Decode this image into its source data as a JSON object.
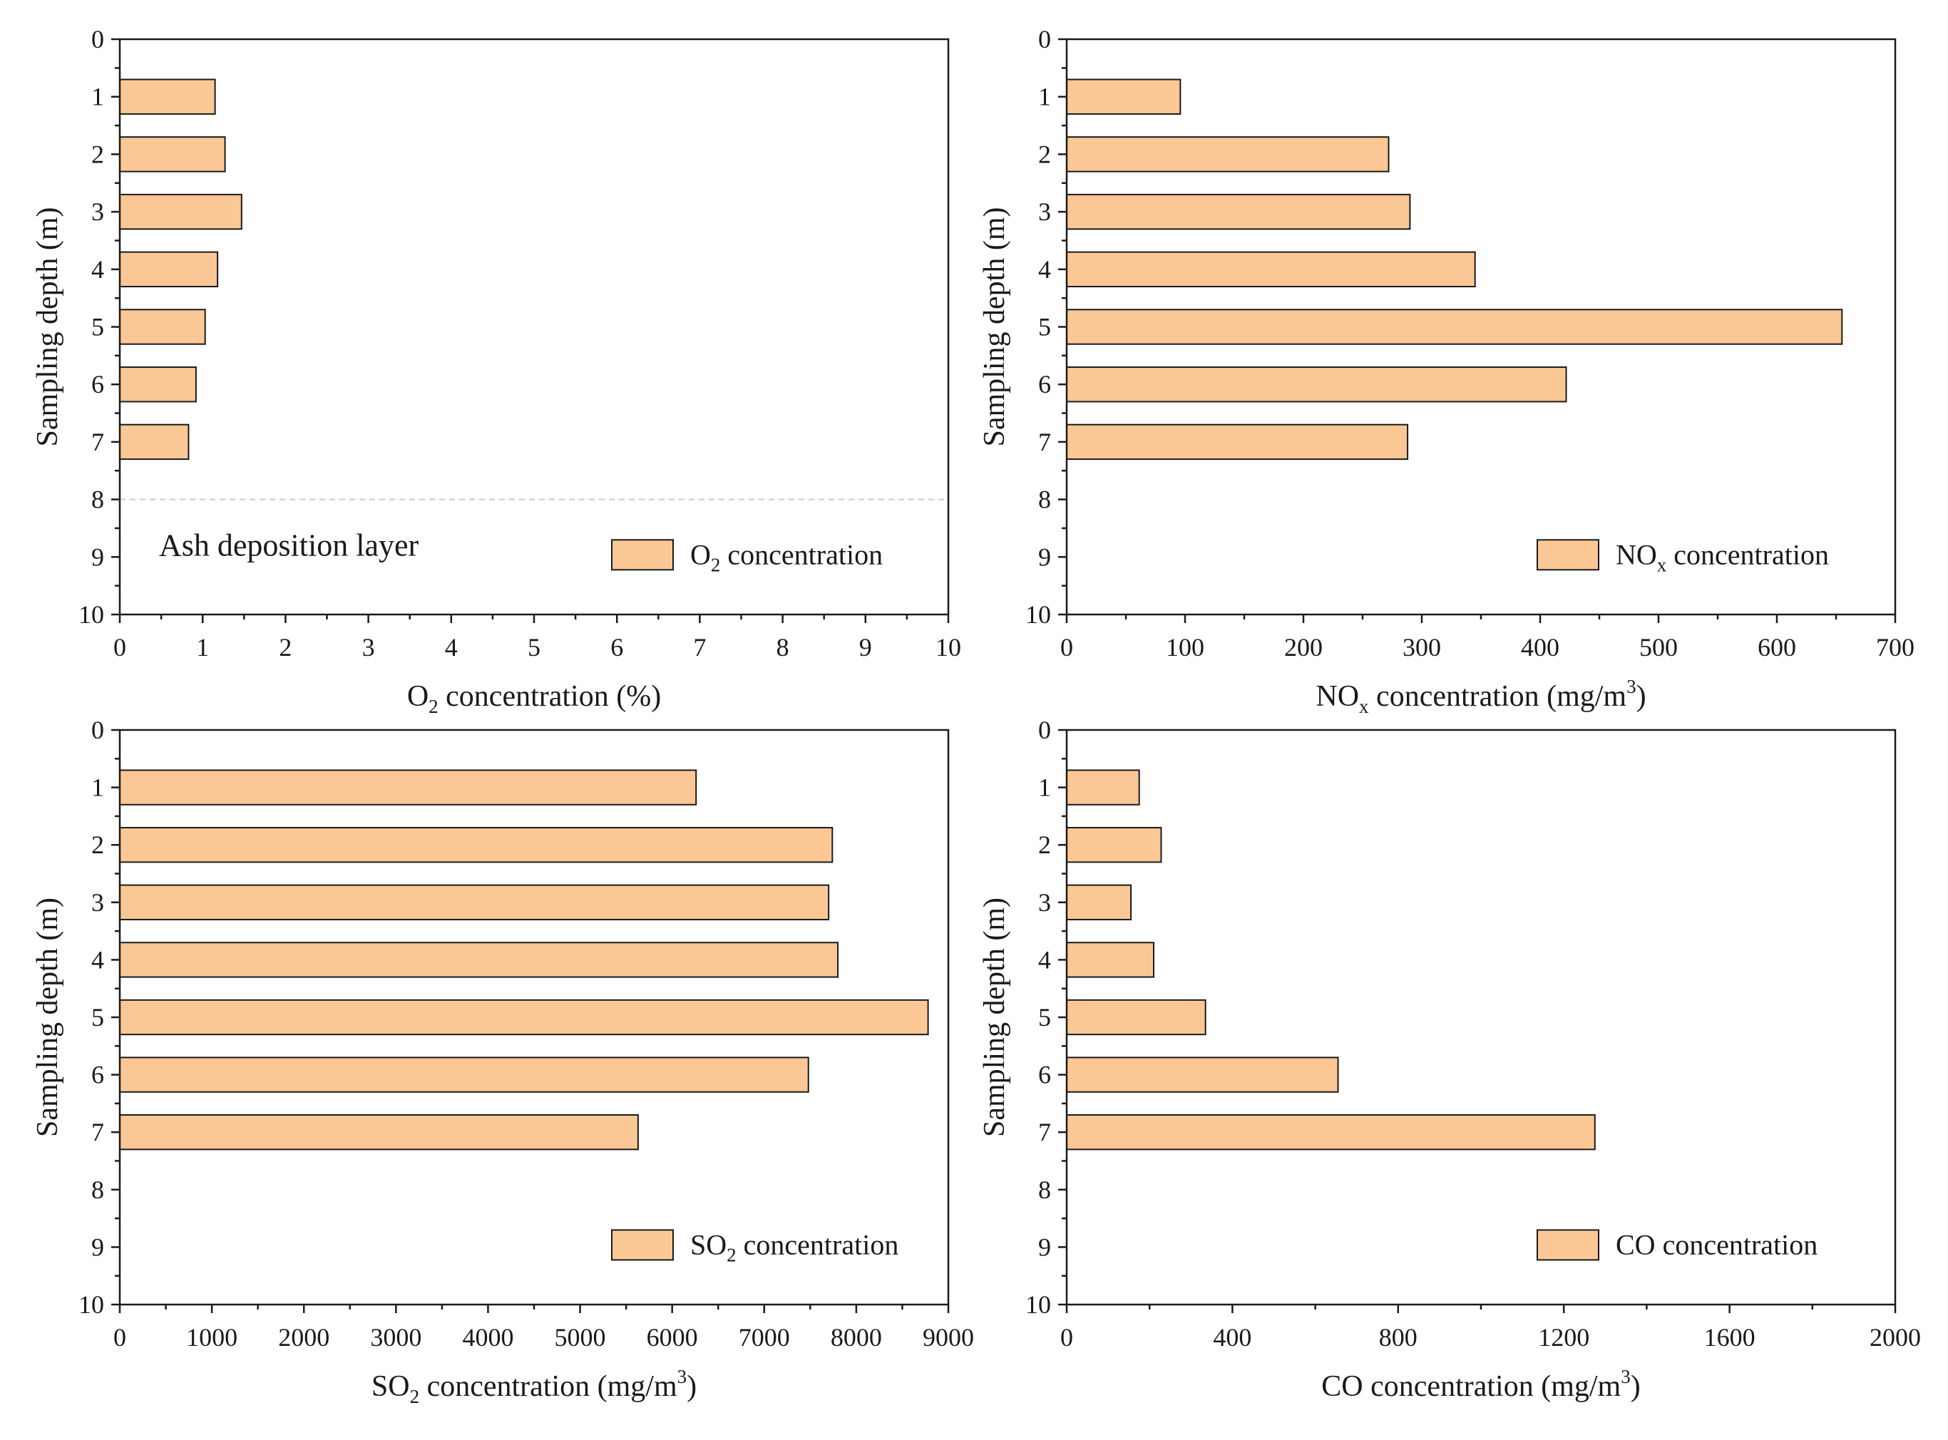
{
  "colors": {
    "bar_fill": "#fbc895",
    "bar_edge": "#1a1a1a",
    "axis": "#1a1a1a"
  },
  "chart_data": [
    {
      "type": "bar",
      "orientation": "horizontal",
      "categories": [
        1,
        2,
        3,
        4,
        5,
        6,
        7
      ],
      "series": [
        {
          "name": "O2 concentration",
          "values": [
            1.15,
            1.27,
            1.47,
            1.18,
            1.03,
            0.92,
            0.83
          ]
        }
      ],
      "xlabel": {
        "main": "O",
        "sub": "2",
        "rest": " concentration (%)"
      },
      "ylabel": "Sampling depth (m)",
      "legend": {
        "main": "O",
        "sub": "2",
        "rest": " concentration"
      },
      "legend_position": "bottom-right",
      "xlim": [
        0,
        10
      ],
      "xticks": [
        0,
        1,
        2,
        3,
        4,
        5,
        6,
        7,
        8,
        9,
        10
      ],
      "ylim": [
        0,
        10
      ],
      "yticks": [
        0,
        1,
        2,
        3,
        4,
        5,
        6,
        7,
        8,
        9,
        10
      ],
      "annotation": "Ash deposition layer",
      "reference_line_depth": 8
    },
    {
      "type": "bar",
      "orientation": "horizontal",
      "categories": [
        1,
        2,
        3,
        4,
        5,
        6,
        7
      ],
      "series": [
        {
          "name": "NOx concentration",
          "values": [
            96,
            272,
            290,
            345,
            655,
            422,
            288
          ]
        }
      ],
      "xlabel": {
        "main": "NO",
        "sub": "x",
        "rest": " concentration (mg/m",
        "sup": "3",
        "end": ")"
      },
      "ylabel": "Sampling depth (m)",
      "legend": {
        "main": "NO",
        "sub": "x",
        "rest": " concentration"
      },
      "legend_position": "bottom-right",
      "xlim": [
        0,
        700
      ],
      "xticks": [
        0,
        100,
        200,
        300,
        400,
        500,
        600,
        700
      ],
      "ylim": [
        0,
        10
      ],
      "yticks": [
        0,
        1,
        2,
        3,
        4,
        5,
        6,
        7,
        8,
        9,
        10
      ]
    },
    {
      "type": "bar",
      "orientation": "horizontal",
      "categories": [
        1,
        2,
        3,
        4,
        5,
        6,
        7
      ],
      "series": [
        {
          "name": "SO2 concentration",
          "values": [
            6260,
            7740,
            7700,
            7800,
            8780,
            7480,
            5630
          ]
        }
      ],
      "xlabel": {
        "main": "SO",
        "sub": "2",
        "rest": " concentration (mg/m",
        "sup": "3",
        "end": ")"
      },
      "ylabel": "Sampling depth (m)",
      "legend": {
        "main": "SO",
        "sub": "2",
        "rest": " concentration"
      },
      "legend_position": "bottom-right",
      "xlim": [
        0,
        9000
      ],
      "xticks": [
        0,
        1000,
        2000,
        3000,
        4000,
        5000,
        6000,
        7000,
        8000,
        9000
      ],
      "ylim": [
        0,
        10
      ],
      "yticks": [
        0,
        1,
        2,
        3,
        4,
        5,
        6,
        7,
        8,
        9,
        10
      ]
    },
    {
      "type": "bar",
      "orientation": "horizontal",
      "categories": [
        1,
        2,
        3,
        4,
        5,
        6,
        7
      ],
      "series": [
        {
          "name": "CO concentration",
          "values": [
            175,
            228,
            155,
            210,
            335,
            655,
            1275
          ]
        }
      ],
      "xlabel": {
        "main": "CO concentration (mg/m",
        "sub": "",
        "rest": "",
        "sup": "3",
        "end": ")"
      },
      "ylabel": "Sampling depth (m)",
      "legend": {
        "main": "CO concentration",
        "sub": "",
        "rest": ""
      },
      "legend_position": "bottom-right",
      "xlim": [
        0,
        2000
      ],
      "xticks": [
        0,
        400,
        800,
        1200,
        1600,
        2000
      ],
      "ylim": [
        0,
        10
      ],
      "yticks": [
        0,
        1,
        2,
        3,
        4,
        5,
        6,
        7,
        8,
        9,
        10
      ]
    }
  ]
}
